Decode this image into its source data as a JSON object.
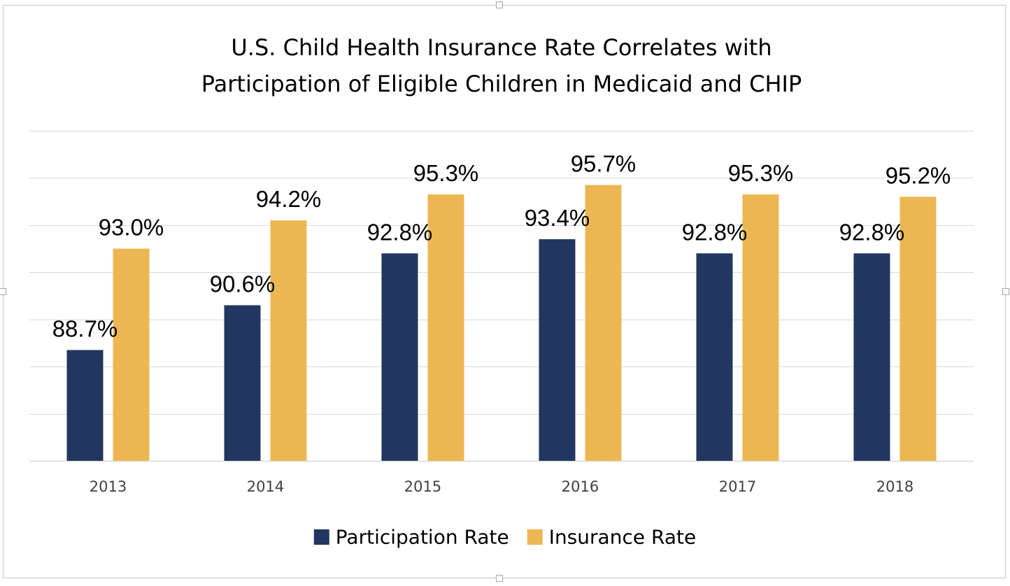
{
  "chart_data": {
    "type": "bar",
    "title": "U.S. Child Health Insurance Rate Correlates with Participation of Eligible Children in Medicaid and CHIP",
    "title_lines": [
      "U.S. Child Health Insurance Rate Correlates with",
      "Participation of Eligible Children in Medicaid and CHIP"
    ],
    "xlabel": "",
    "ylabel": "",
    "categories": [
      "2013",
      "2014",
      "2015",
      "2016",
      "2017",
      "2018"
    ],
    "series": [
      {
        "name": "Participation Rate",
        "color": "#213760",
        "values": [
          88.7,
          90.6,
          92.8,
          93.4,
          92.8,
          92.8
        ],
        "labels": [
          "88.7%",
          "90.6%",
          "92.8%",
          "93.4%",
          "92.8%",
          "92.8%"
        ]
      },
      {
        "name": "Insurance Rate",
        "color": "#ecb753",
        "values": [
          93.0,
          94.2,
          95.3,
          95.7,
          95.3,
          95.2
        ],
        "labels": [
          "93.0%",
          "94.2%",
          "95.3%",
          "95.7%",
          "95.3%",
          "95.2%"
        ]
      }
    ],
    "ylim": [
      84,
      98
    ],
    "y_gridline_step": 2,
    "y_tick_labels_shown": false,
    "grid": true,
    "legend_position": "bottom",
    "colors": {
      "gridline": "#d9d9d9",
      "tick_text": "#404040"
    }
  }
}
